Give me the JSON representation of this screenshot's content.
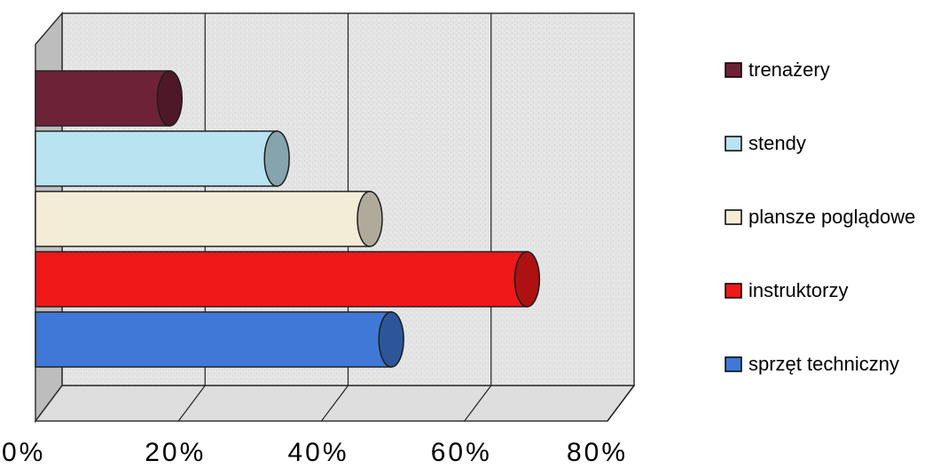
{
  "chart_data": {
    "type": "bar",
    "orientation": "horizontal",
    "style": "3d-cylinder",
    "xlim": [
      0,
      80
    ],
    "x_ticks": [
      "0%",
      "20%",
      "40%",
      "60%",
      "80%"
    ],
    "grid": true,
    "legend_position": "right",
    "series": [
      {
        "name": "trenażery",
        "value": 20,
        "color": "#6e2238"
      },
      {
        "name": "stendy",
        "value": 35,
        "color": "#b9e3f0"
      },
      {
        "name": "plansze poglądowe",
        "value": 48,
        "color": "#f3ecd6"
      },
      {
        "name": "instruktorzy",
        "value": 70,
        "color": "#f01818"
      },
      {
        "name": "sprzęt techniczny",
        "value": 51,
        "color": "#3f78d6"
      }
    ]
  }
}
